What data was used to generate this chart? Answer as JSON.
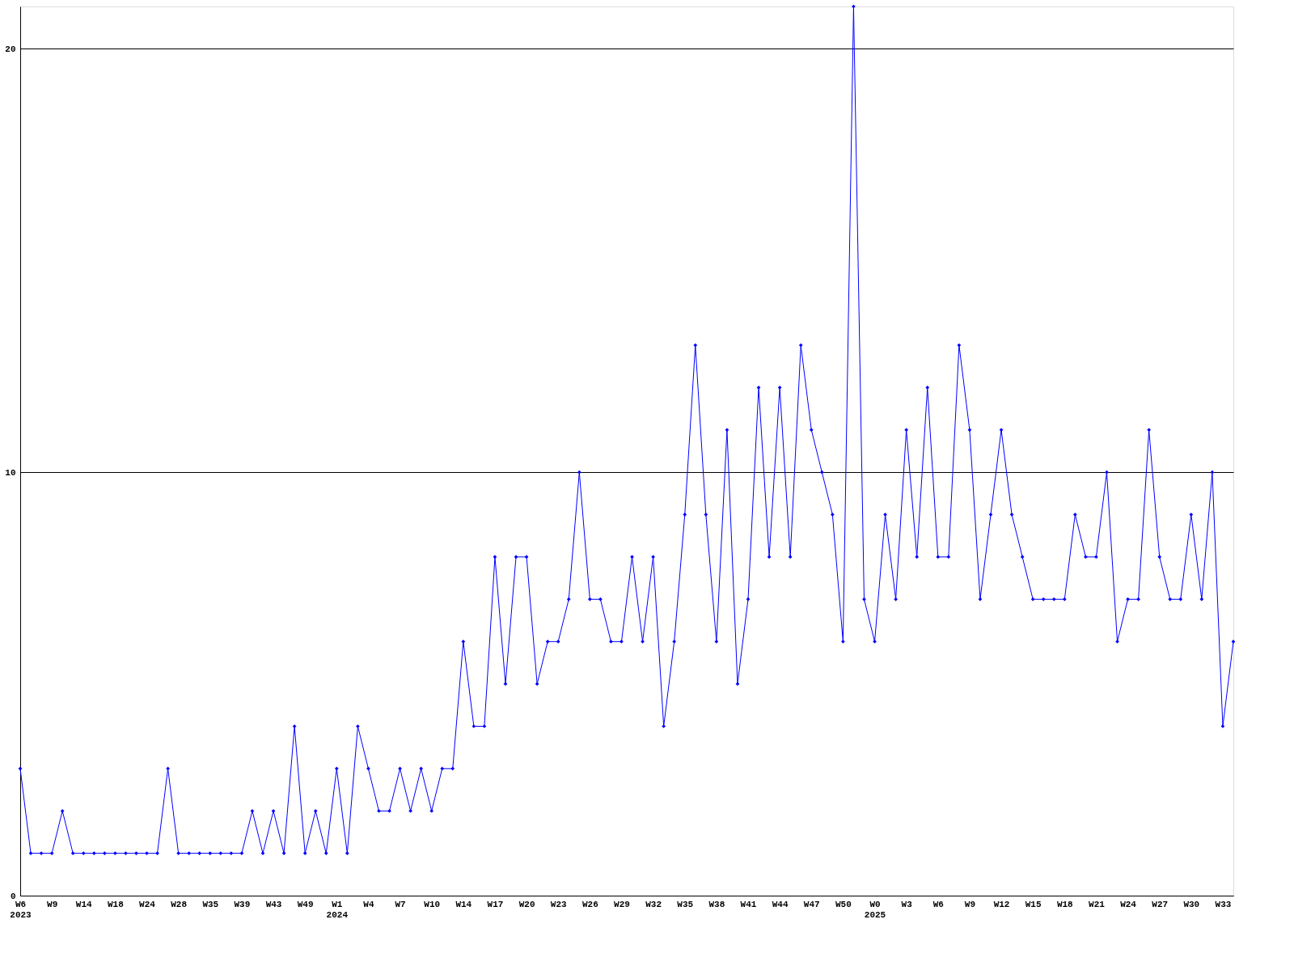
{
  "chart_data": {
    "type": "line",
    "categories": [
      "W6\n2023",
      null,
      null,
      "W9",
      null,
      null,
      "W14",
      null,
      null,
      "W18",
      null,
      null,
      "W24",
      null,
      null,
      "W28",
      null,
      null,
      "W35",
      null,
      null,
      "W39",
      null,
      null,
      "W43",
      null,
      null,
      "W49",
      null,
      null,
      "W1\n2024",
      null,
      null,
      "W4",
      null,
      null,
      "W7",
      null,
      null,
      "W10",
      null,
      null,
      "W14",
      null,
      null,
      "W17",
      null,
      null,
      "W20",
      null,
      null,
      "W23",
      null,
      null,
      "W26",
      null,
      null,
      "W29",
      null,
      null,
      "W32",
      null,
      null,
      "W35",
      null,
      null,
      "W38",
      null,
      null,
      "W41",
      null,
      null,
      "W44",
      null,
      null,
      "W47",
      null,
      null,
      "W50",
      null,
      null,
      "W0\n2025",
      null,
      null,
      "W3",
      null,
      null,
      "W6",
      null,
      null,
      "W9",
      null,
      null,
      "W12",
      null,
      null,
      "W15",
      null,
      null,
      "W18",
      null,
      null,
      "W21",
      null,
      null,
      "W24",
      null,
      null,
      "W27",
      null,
      null,
      "W30",
      null,
      null,
      "W33",
      null
    ],
    "series": [
      {
        "color": "#0000ff",
        "values": [
          3,
          1,
          1,
          1,
          2,
          1,
          1,
          1,
          1,
          1,
          1,
          1,
          1,
          1,
          3,
          1,
          1,
          1,
          1,
          1,
          1,
          1,
          2,
          1,
          2,
          1,
          4,
          1,
          2,
          1,
          3,
          1,
          4,
          3,
          2,
          2,
          3,
          2,
          3,
          2,
          3,
          3,
          6,
          4,
          4,
          8,
          5,
          8,
          8,
          5,
          6,
          6,
          7,
          10,
          7,
          7,
          6,
          6,
          8,
          6,
          8,
          4,
          6,
          9,
          13,
          9,
          6,
          11,
          5,
          7,
          12,
          8,
          12,
          8,
          13,
          11,
          10,
          9,
          6,
          21,
          7,
          6,
          9,
          7,
          11,
          8,
          12,
          8,
          8,
          13,
          11,
          7,
          9,
          11,
          9,
          8,
          7,
          7,
          7,
          7,
          9,
          8,
          8,
          10,
          6,
          7,
          7,
          11,
          8,
          7,
          7,
          9,
          7,
          10,
          4,
          6
        ]
      }
    ],
    "ylim": [
      0,
      21
    ],
    "yticks": [
      0,
      10,
      20
    ],
    "grid": "y",
    "marker": "diamond",
    "line_style": "solid"
  }
}
